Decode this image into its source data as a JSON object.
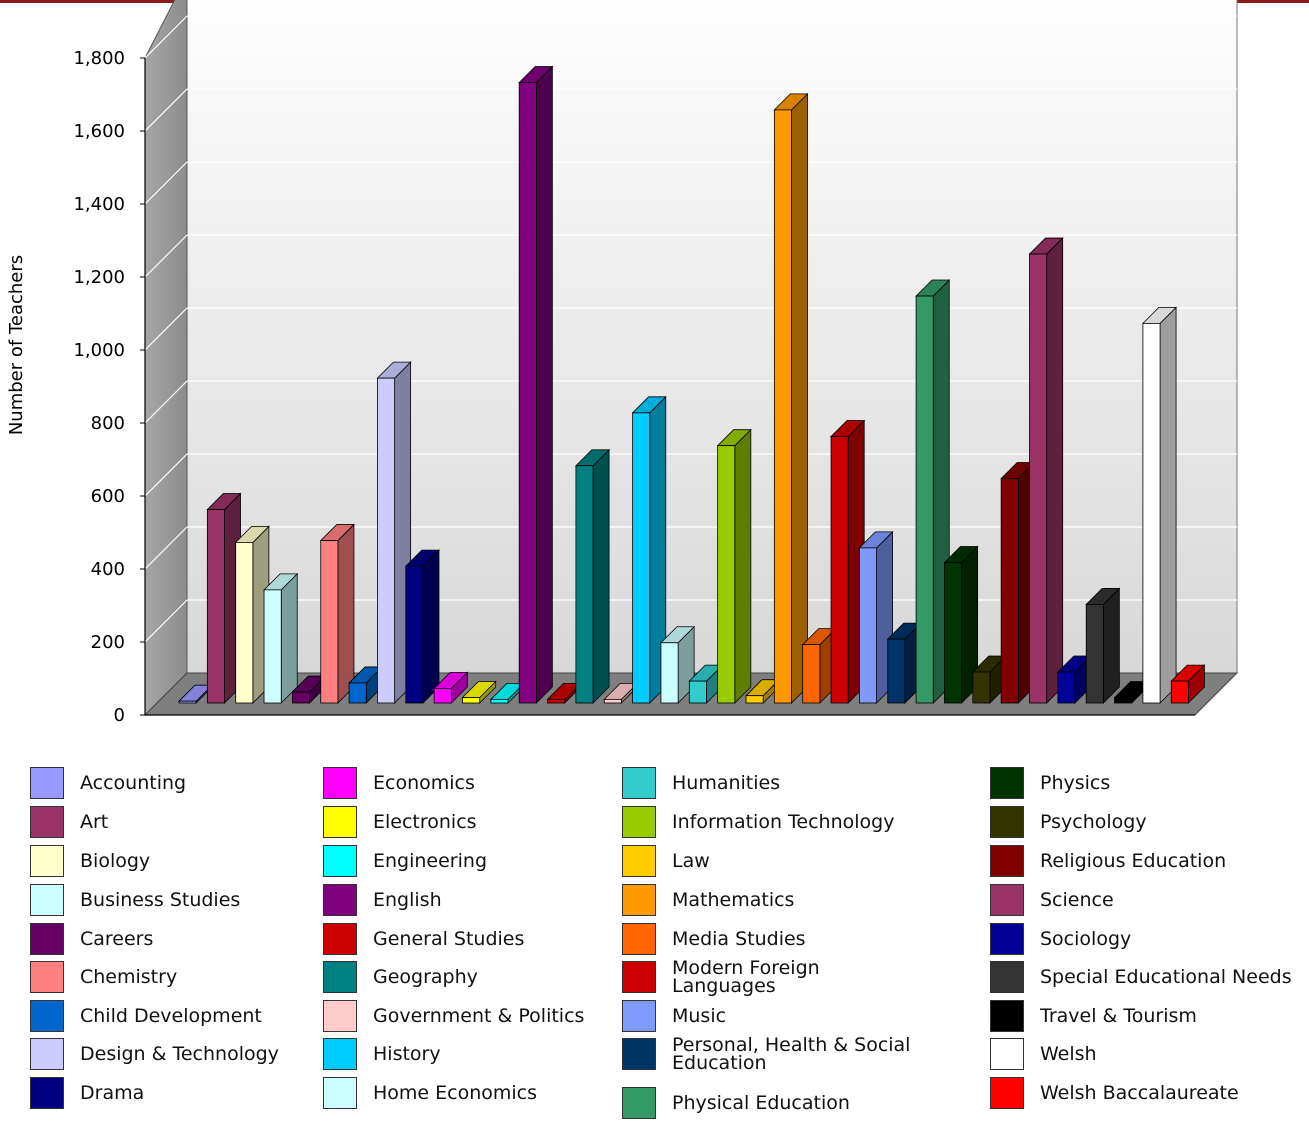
{
  "chart_data": {
    "type": "bar",
    "title": "",
    "xlabel": "",
    "ylabel": "Number of Teachers",
    "ylim": [
      0,
      1800
    ],
    "yticks": [
      "0",
      "200",
      "400",
      "600",
      "800",
      "1,000",
      "1,200",
      "1,400",
      "1,600",
      "1,800"
    ],
    "yticks_values": [
      0,
      200,
      400,
      600,
      800,
      1000,
      1200,
      1400,
      1600,
      1800
    ],
    "grid": true,
    "three_d": true,
    "legend_position": "bottom",
    "categories": [
      "Accounting",
      "Art",
      "Biology",
      "Business Studies",
      "Careers",
      "Chemistry",
      "Child Development",
      "Design & Technology",
      "Drama",
      "Economics",
      "Electronics",
      "Engineering",
      "English",
      "General Studies",
      "Geography",
      "Government & Politics",
      "History",
      "Home Economics",
      "Humanities",
      "Information Technology",
      "Law",
      "Mathematics",
      "Media Studies",
      "Modern Foreign Languages",
      "Music",
      "Personal, Health & Social Education",
      "Physical Education",
      "Physics",
      "Psychology",
      "Religious Education",
      "Science",
      "Sociology",
      "Special Educational Needs",
      "Travel & Tourism",
      "Welsh",
      "Welsh Baccalaureate"
    ],
    "values": [
      5,
      530,
      440,
      310,
      30,
      445,
      55,
      890,
      375,
      40,
      15,
      10,
      1700,
      10,
      650,
      10,
      795,
      165,
      60,
      705,
      20,
      1625,
      160,
      730,
      425,
      175,
      1115,
      385,
      85,
      615,
      1230,
      85,
      270,
      15,
      1040,
      60
    ],
    "colors": [
      "#9999ff",
      "#993366",
      "#ffffcc",
      "#ccffff",
      "#660066",
      "#ff8080",
      "#0066cc",
      "#ccccff",
      "#000080",
      "#ff00ff",
      "#ffff00",
      "#00ffff",
      "#800080",
      "#cc0000",
      "#008080",
      "#ffcccc",
      "#00ccff",
      "#ccffff",
      "#33cccc",
      "#99cc00",
      "#ffcc00",
      "#ff9900",
      "#ff6600",
      "#cc0000",
      "#8099ff",
      "#003366",
      "#339966",
      "#003300",
      "#333300",
      "#800000",
      "#993366",
      "#000099",
      "#333333",
      "#000000",
      "#ffffff",
      "#ff0000"
    ]
  }
}
